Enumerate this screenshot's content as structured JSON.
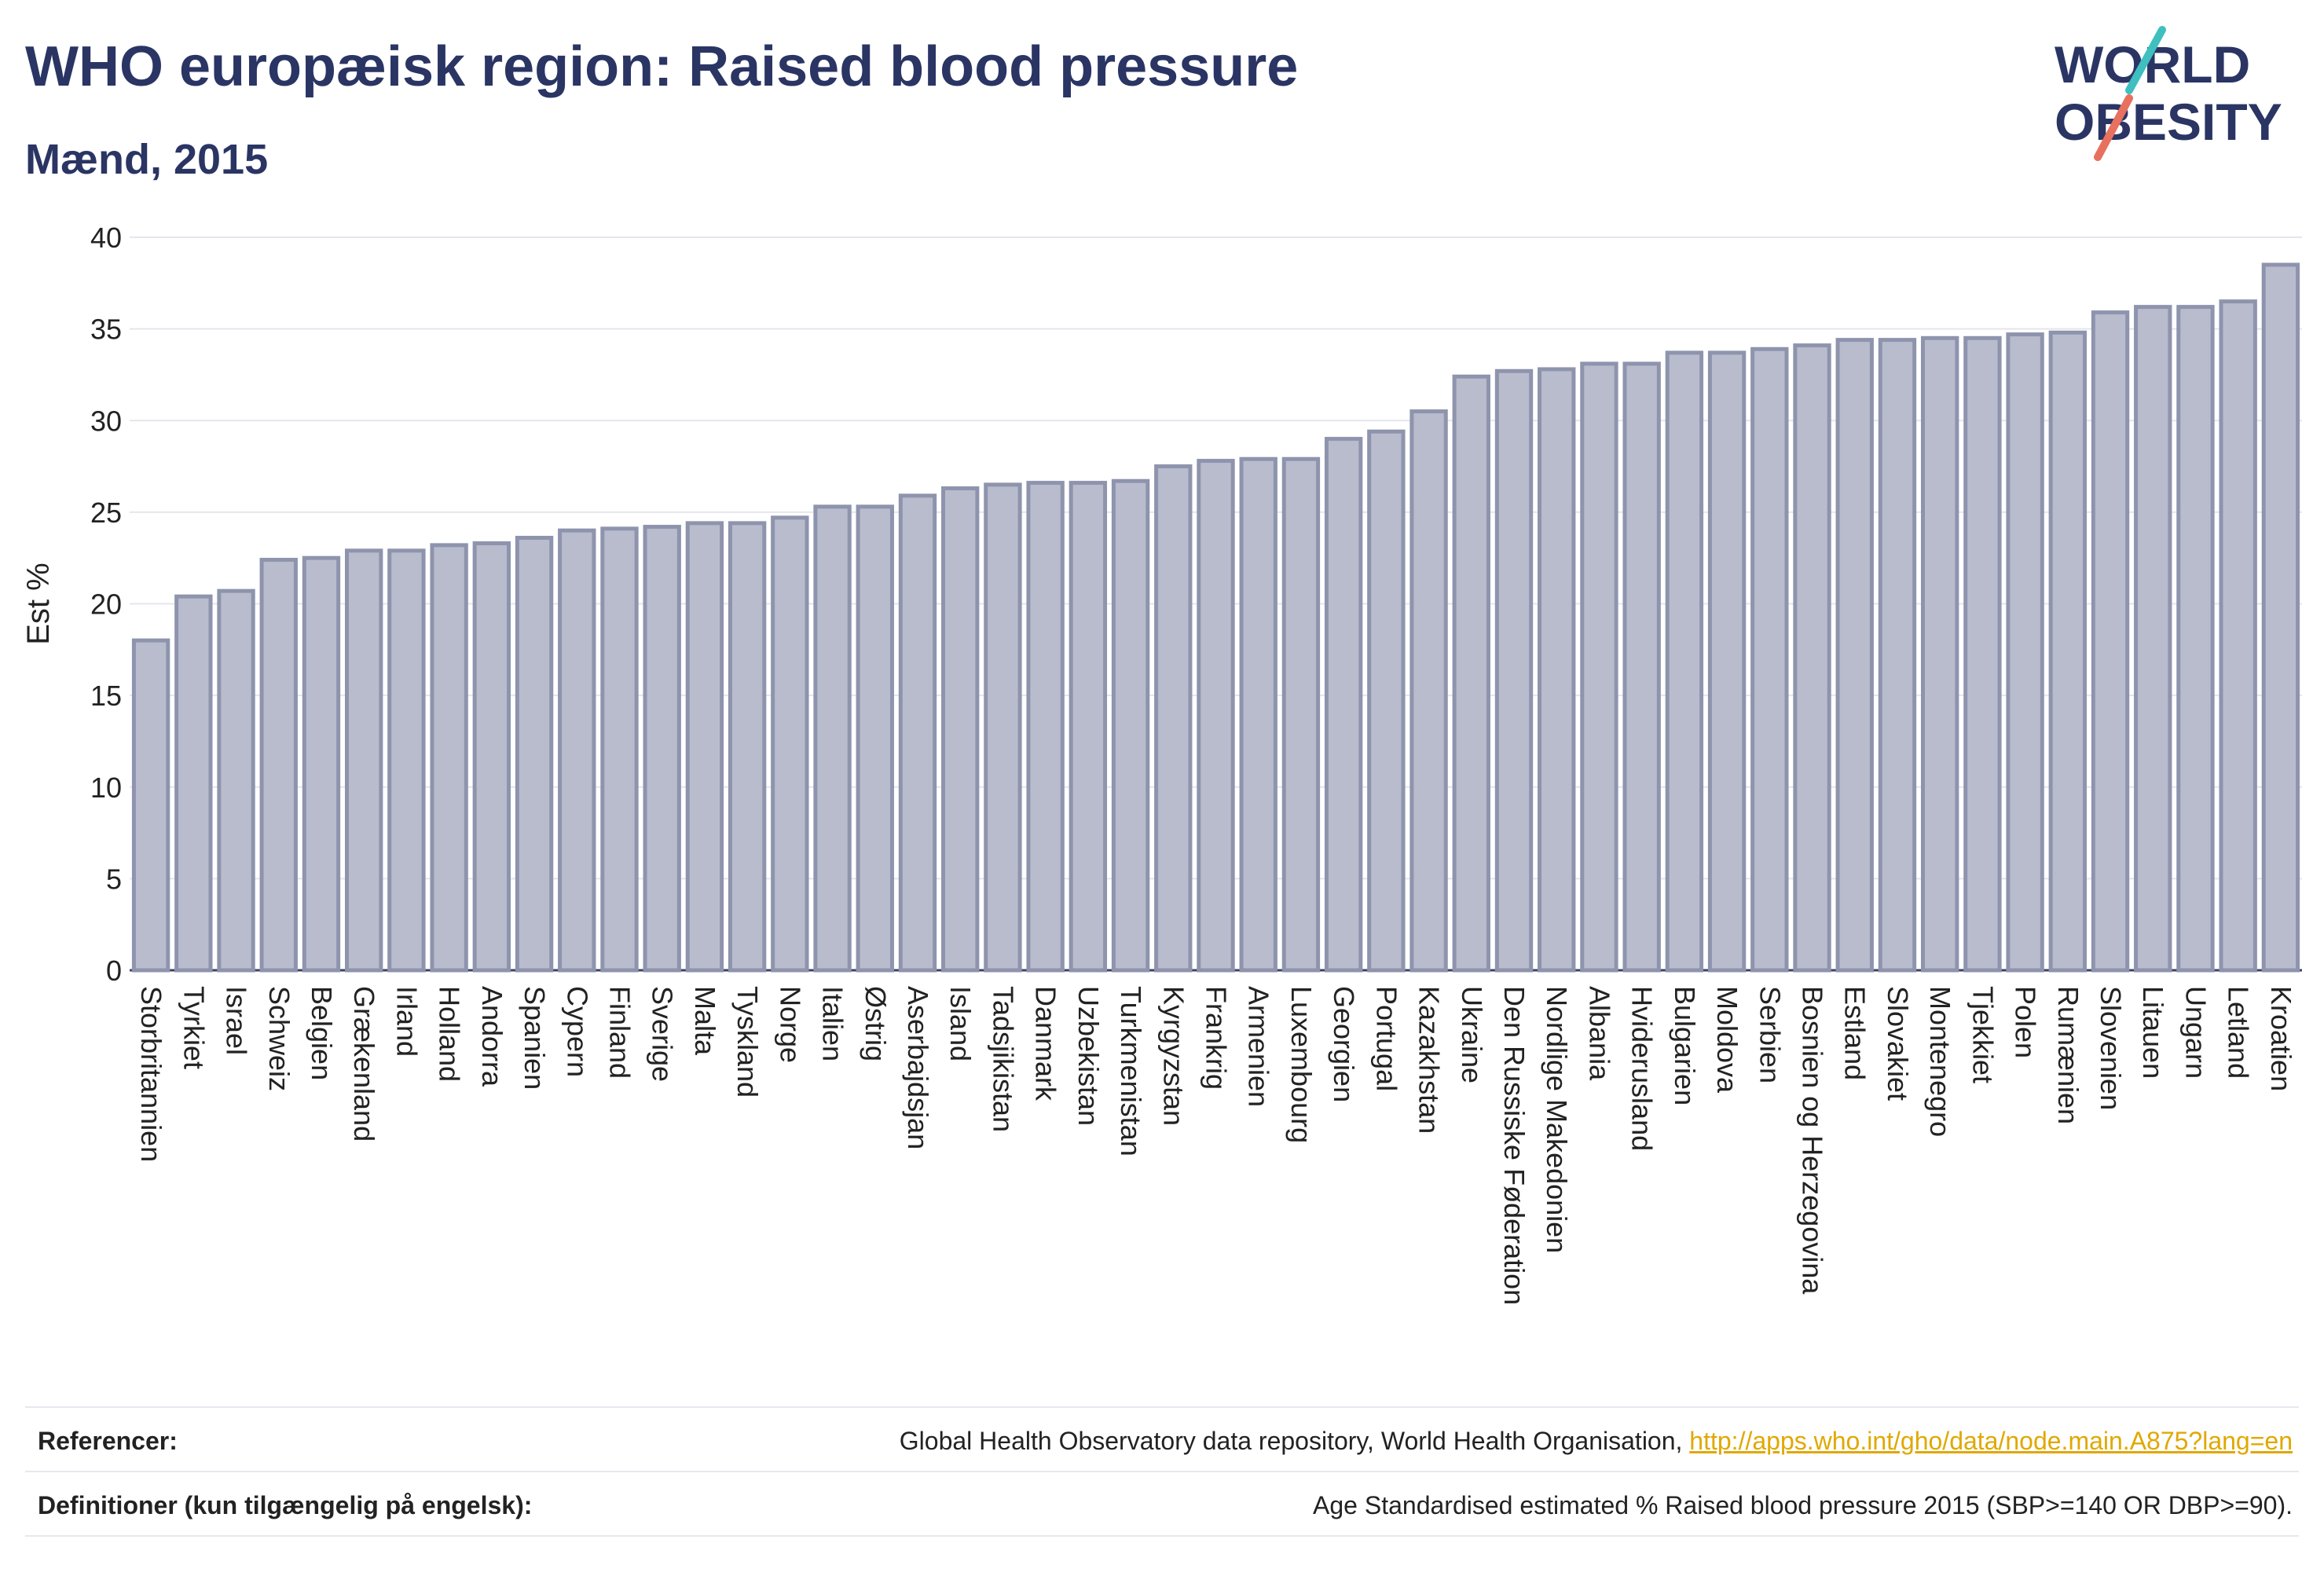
{
  "header": {
    "title": "WHO europæisk region: Raised blood pressure",
    "subtitle": "Mænd, 2015"
  },
  "logo": {
    "line1": "WORLD",
    "line2": "OBESITY",
    "colors": {
      "text": "#2a3564",
      "teal": "#3fbfbf",
      "coral": "#e8705f"
    }
  },
  "chart_data": {
    "type": "bar",
    "ylabel": "Est %",
    "xlabel": "",
    "ylim": [
      0,
      40
    ],
    "yticks": [
      0,
      5,
      10,
      15,
      20,
      25,
      30,
      35,
      40
    ],
    "grid": true,
    "bar_fill": "#b8bccd",
    "bar_stroke": "#8e94ad",
    "categories": [
      "Storbritannien",
      "Tyrkiet",
      "Israel",
      "Schweiz",
      "Belgien",
      "Grækenland",
      "Irland",
      "Holland",
      "Andorra",
      "Spanien",
      "Cypern",
      "Finland",
      "Sverige",
      "Malta",
      "Tyskland",
      "Norge",
      "Italien",
      "Østrig",
      "Aserbajdsjan",
      "Island",
      "Tadsjikistan",
      "Danmark",
      "Uzbekistan",
      "Turkmenistan",
      "Kyrgyzstan",
      "Frankrig",
      "Armenien",
      "Luxembourg",
      "Georgien",
      "Portugal",
      "Kazakhstan",
      "Ukraine",
      "Den Russiske Føderation",
      "Nordlige Makedonien",
      "Albania",
      "Hviderusland",
      "Bulgarien",
      "Moldova",
      "Serbien",
      "Bosnien og Herzegovina",
      "Estland",
      "Slovakiet",
      "Montenegro",
      "Tjekkiet",
      "Polen",
      "Rumænien",
      "Slovenien",
      "Litauen",
      "Ungarn",
      "Letland",
      "Kroatien"
    ],
    "values": [
      18.0,
      20.4,
      20.7,
      22.4,
      22.5,
      22.9,
      22.9,
      23.2,
      23.3,
      23.6,
      24.0,
      24.1,
      24.2,
      24.4,
      24.4,
      24.7,
      25.3,
      25.3,
      25.9,
      26.3,
      26.5,
      26.6,
      26.6,
      26.7,
      27.5,
      27.8,
      27.9,
      27.9,
      29.0,
      29.4,
      30.5,
      32.4,
      32.7,
      32.8,
      33.1,
      33.1,
      33.7,
      33.7,
      33.9,
      34.1,
      34.4,
      34.4,
      34.5,
      34.5,
      34.7,
      34.8,
      35.9,
      36.2,
      36.2,
      36.5,
      38.5
    ]
  },
  "footer": {
    "references_label": "Referencer:",
    "references_text": "Global Health Observatory data repository, World Health Organisation, ",
    "references_link": "http://apps.who.int/gho/data/node.main.A875?lang=en",
    "definitions_label": "Definitioner (kun tilgængelig på engelsk):",
    "definitions_text": "Age Standardised estimated % Raised blood pressure 2015 (SBP>=140 OR DBP>=90)."
  }
}
